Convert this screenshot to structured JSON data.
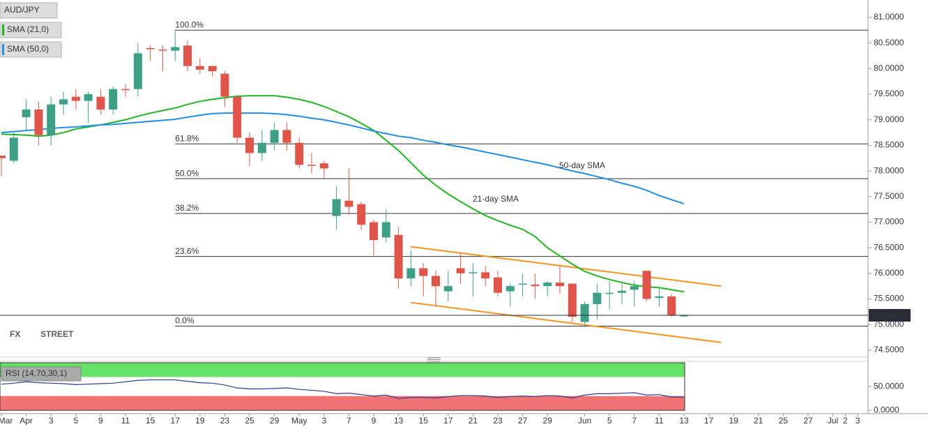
{
  "chart_data": [
    {
      "type": "candlestick",
      "title": "AUD/JPY",
      "categories": [
        "Mar",
        null,
        "Apr",
        null,
        "3",
        null,
        "5",
        null,
        "9",
        null,
        "11",
        null,
        "15",
        null,
        "17",
        null,
        "19",
        null,
        "23",
        null,
        "25",
        null,
        "29",
        null,
        "May",
        null,
        "3",
        null,
        "7",
        null,
        "9",
        null,
        "13",
        null,
        "15",
        null,
        "17",
        null,
        "21",
        null,
        "23",
        null,
        "27",
        null,
        "29",
        null,
        null,
        "Jun",
        null,
        "5",
        null,
        "7",
        null,
        "11",
        null,
        "13",
        null,
        "17",
        null,
        "19",
        null,
        "21",
        null,
        "25",
        null,
        "27",
        null,
        "Jul",
        "2",
        "3"
      ],
      "open": [
        78.3,
        78.2,
        79.05,
        79.2,
        78.7,
        79.3,
        79.45,
        79.37,
        79.45,
        79.2,
        79.6,
        79.6,
        80.4,
        80.37,
        80.35,
        80.45,
        80.05,
        80.05,
        79.9,
        79.45,
        78.65,
        78.35,
        78.55,
        78.8,
        78.55,
        78.12,
        78.15,
        77.12,
        77.42,
        77.35,
        77.0,
        76.7,
        76.75,
        75.9,
        76.1,
        75.95,
        75.65,
        76.1,
        76.0,
        76.02,
        75.92,
        75.65,
        75.78,
        75.78,
        75.75,
        75.82,
        75.8,
        75.05,
        75.4,
        75.6,
        75.62,
        75.68,
        76.05,
        75.52,
        75.55,
        75.18,
        null,
        null,
        null,
        null,
        null,
        null,
        null,
        null,
        null,
        null,
        null,
        null,
        null,
        null
      ],
      "high": [
        78.3,
        78.75,
        79.4,
        79.35,
        79.45,
        79.55,
        79.6,
        79.55,
        79.6,
        79.65,
        79.7,
        80.5,
        80.45,
        80.45,
        80.75,
        80.55,
        80.2,
        80.05,
        79.95,
        79.45,
        78.75,
        78.8,
        78.95,
        78.95,
        78.65,
        78.35,
        78.2,
        77.7,
        78.05,
        77.4,
        77.05,
        77.25,
        76.9,
        76.45,
        76.2,
        76.05,
        76.05,
        76.4,
        76.2,
        76.15,
        76.05,
        75.8,
        76.0,
        76.0,
        75.85,
        76.15,
        75.8,
        75.45,
        75.8,
        75.85,
        75.8,
        75.85,
        76.05,
        75.7,
        75.6,
        75.2,
        null,
        null,
        null,
        null,
        null,
        null,
        null,
        null,
        null,
        null,
        null,
        null,
        null,
        null
      ],
      "low": [
        77.9,
        78.15,
        78.8,
        78.5,
        78.5,
        79.1,
        79.2,
        78.95,
        79.1,
        79.1,
        79.45,
        79.45,
        80.15,
        79.95,
        80.15,
        79.95,
        79.9,
        79.85,
        79.25,
        78.55,
        78.1,
        78.2,
        78.4,
        78.4,
        78.05,
        77.95,
        77.85,
        76.85,
        77.15,
        76.85,
        76.35,
        76.6,
        75.7,
        75.75,
        75.55,
        75.35,
        75.45,
        75.8,
        75.55,
        75.75,
        75.55,
        75.35,
        75.55,
        75.5,
        75.55,
        75.6,
        75.05,
        74.95,
        75.1,
        75.3,
        75.4,
        75.35,
        75.45,
        75.35,
        75.15,
        75.15,
        null,
        null,
        null,
        null,
        null,
        null,
        null,
        null,
        null,
        null,
        null,
        null,
        null,
        null
      ],
      "close": [
        78.25,
        78.65,
        79.2,
        78.7,
        79.3,
        79.4,
        79.37,
        79.5,
        79.2,
        79.6,
        79.58,
        80.3,
        80.38,
        80.35,
        80.42,
        80.05,
        79.98,
        79.95,
        79.45,
        78.65,
        78.35,
        78.55,
        78.8,
        78.55,
        78.12,
        78.1,
        78.05,
        77.45,
        77.3,
        76.95,
        76.65,
        77.0,
        75.9,
        76.1,
        75.95,
        75.75,
        75.75,
        76.0,
        76.02,
        75.9,
        75.62,
        75.75,
        75.8,
        75.75,
        75.82,
        75.75,
        75.15,
        75.4,
        75.62,
        75.62,
        75.66,
        75.75,
        75.5,
        75.55,
        75.18,
        75.18,
        null,
        null,
        null,
        null,
        null,
        null,
        null,
        null,
        null,
        null,
        null,
        null,
        null,
        null
      ],
      "up_color": "#3c9f86",
      "down_color": "#e0554a",
      "series": [
        {
          "name": "SMA (21,0)",
          "annotation": "21-day SMA",
          "color": "#21b521",
          "values": [
            78.72,
            78.71,
            78.7,
            78.68,
            78.7,
            78.75,
            78.82,
            78.86,
            78.9,
            78.95,
            79.0,
            79.07,
            79.13,
            79.18,
            79.23,
            79.3,
            79.36,
            79.4,
            79.43,
            79.46,
            79.47,
            79.47,
            79.47,
            79.44,
            79.4,
            79.34,
            79.26,
            79.16,
            79.06,
            78.93,
            78.79,
            78.6,
            78.4,
            78.16,
            77.92,
            77.72,
            77.55,
            77.4,
            77.26,
            77.13,
            77.03,
            76.94,
            76.86,
            76.72,
            76.5,
            76.34,
            76.18,
            76.04,
            75.95,
            75.88,
            75.82,
            75.77,
            75.74,
            75.72,
            75.68,
            75.64,
            null,
            null,
            null,
            null,
            null,
            null,
            null,
            null,
            null,
            null,
            null,
            null,
            null,
            null
          ]
        },
        {
          "name": "SMA (50,0)",
          "annotation": "50-day SMA",
          "color": "#1e8ee6",
          "values": [
            78.75,
            78.77,
            78.79,
            78.81,
            78.83,
            78.85,
            78.86,
            78.88,
            78.9,
            78.91,
            78.93,
            78.95,
            78.97,
            78.99,
            79.01,
            79.05,
            79.09,
            79.12,
            79.13,
            79.13,
            79.13,
            79.13,
            79.12,
            79.1,
            79.07,
            79.03,
            79.0,
            78.95,
            78.9,
            78.84,
            78.78,
            78.73,
            78.68,
            78.65,
            78.6,
            78.56,
            78.51,
            78.47,
            78.42,
            78.37,
            78.32,
            78.27,
            78.22,
            78.17,
            78.12,
            78.06,
            78.0,
            77.95,
            77.89,
            77.83,
            77.76,
            77.7,
            77.62,
            77.52,
            77.44,
            77.36,
            null,
            null,
            null,
            null,
            null,
            null,
            null,
            null,
            null,
            null,
            null,
            null,
            null,
            null
          ]
        }
      ],
      "fib_levels": [
        {
          "value": 80.75,
          "label": "100.0%"
        },
        {
          "value": 78.53,
          "label": "61.8%"
        },
        {
          "value": 77.85,
          "label": "50.0%"
        },
        {
          "value": 77.17,
          "label": "38.2%"
        },
        {
          "value": 76.33,
          "label": "23.6%"
        },
        {
          "value": 74.97,
          "label": "0.0%"
        }
      ],
      "channel": {
        "color": "#f7931e",
        "upper": [
          76.52,
          75.75
        ],
        "lower": [
          75.43,
          74.65
        ]
      },
      "last_price": {
        "value": 75.1805,
        "label": "75.18050"
      },
      "ylim": [
        74.39,
        81.34
      ],
      "yticks": [
        {
          "value": 74.5,
          "label": "74.5000"
        },
        {
          "value": 75,
          "label": "75.0000"
        },
        {
          "value": 75.5,
          "label": "75.5000"
        },
        {
          "value": 76,
          "label": "76.0000"
        },
        {
          "value": 76.5,
          "label": "76.5000"
        },
        {
          "value": 77,
          "label": "77.0000"
        },
        {
          "value": 77.5,
          "label": "77.5000"
        },
        {
          "value": 78,
          "label": "78.0000"
        },
        {
          "value": 78.5,
          "label": "78.5000"
        },
        {
          "value": 79,
          "label": "79.0000"
        },
        {
          "value": 79.5,
          "label": "79.5000"
        },
        {
          "value": 80,
          "label": "80.0000"
        },
        {
          "value": 80.5,
          "label": "80.5000"
        },
        {
          "value": 81,
          "label": "81.0000"
        }
      ],
      "watermark": [
        "FX",
        "STREET"
      ]
    },
    {
      "type": "line",
      "title": "RSI (14,70,30,1)",
      "color": "#2a3a9a",
      "values": [
        55,
        57,
        60,
        58,
        57,
        56,
        54,
        55,
        56,
        57,
        60,
        63,
        64,
        64,
        64,
        61,
        58,
        57,
        53,
        47,
        45,
        45,
        46,
        47,
        44,
        42,
        40,
        35,
        36,
        33,
        30,
        32,
        25,
        27,
        27,
        26,
        29,
        31,
        31,
        30,
        27,
        29,
        30,
        29,
        31,
        30,
        26,
        32,
        35,
        35,
        36,
        37,
        32,
        33,
        28,
        28,
        null,
        null,
        null,
        null,
        null,
        null,
        null,
        null,
        null,
        null,
        null,
        null,
        null,
        null
      ],
      "overbought": 70,
      "oversold": 30,
      "ylim": [
        -7,
        100
      ],
      "yticks": [
        {
          "value": 50,
          "label": "50.0000"
        },
        {
          "value": 0,
          "label": "0.0000"
        }
      ]
    }
  ]
}
